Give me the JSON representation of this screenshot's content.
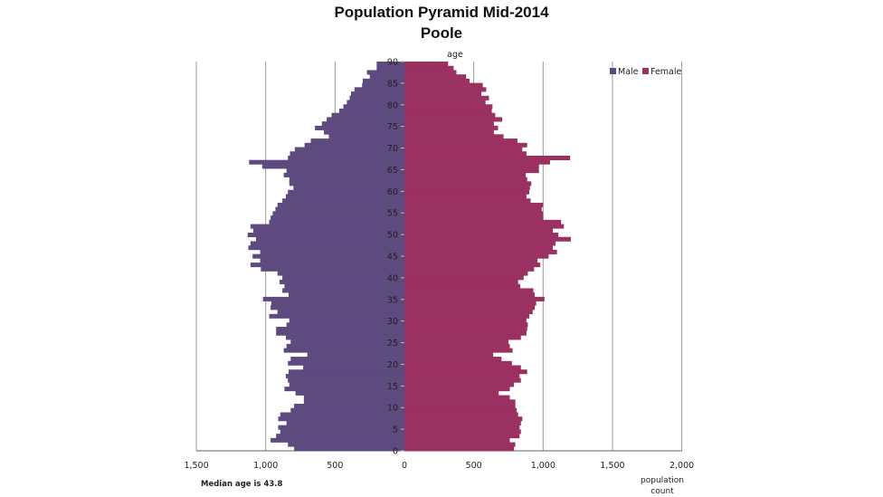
{
  "chart_data": {
    "type": "bar",
    "orientation": "horizontal-pyramid",
    "title": "Population Pyramid Mid-2014",
    "subtitle": "Poole",
    "ylabel": "age",
    "xlabel": "population count",
    "x_tick_labels_left": [
      "1,500",
      "1,000",
      "500"
    ],
    "x_tick_labels_right": [
      "0",
      "500",
      "1,000",
      "1,500",
      "2,000"
    ],
    "xlim_male": [
      0,
      1500
    ],
    "xlim_female": [
      0,
      2000
    ],
    "y_ticks": [
      0,
      5,
      10,
      15,
      20,
      25,
      30,
      35,
      40,
      45,
      50,
      55,
      60,
      65,
      70,
      75,
      80,
      85,
      90
    ],
    "grid": "vertical",
    "legend_position": "top-right",
    "ages": [
      0,
      1,
      2,
      3,
      4,
      5,
      6,
      7,
      8,
      9,
      10,
      11,
      12,
      13,
      14,
      15,
      16,
      17,
      18,
      19,
      20,
      21,
      22,
      23,
      24,
      25,
      26,
      27,
      28,
      29,
      30,
      31,
      32,
      33,
      34,
      35,
      36,
      37,
      38,
      39,
      40,
      41,
      42,
      43,
      44,
      45,
      46,
      47,
      48,
      49,
      50,
      51,
      52,
      53,
      54,
      55,
      56,
      57,
      58,
      59,
      60,
      61,
      62,
      63,
      64,
      65,
      66,
      67,
      68,
      69,
      70,
      71,
      72,
      73,
      74,
      75,
      76,
      77,
      78,
      79,
      80,
      81,
      82,
      83,
      84,
      85,
      86,
      87,
      88,
      89,
      90
    ],
    "series": [
      {
        "name": "Male",
        "color": "#5d4a7e",
        "values": [
          795,
          840,
          965,
          925,
          895,
          910,
          850,
          910,
          895,
          820,
          795,
          725,
          725,
          785,
          865,
          830,
          840,
          855,
          835,
          730,
          840,
          820,
          700,
          870,
          850,
          820,
          855,
          925,
          925,
          850,
          830,
          975,
          915,
          965,
          960,
          1020,
          835,
          880,
          865,
          900,
          880,
          915,
          1035,
          1110,
          1040,
          1095,
          1040,
          1125,
          1110,
          1070,
          1130,
          1090,
          1110,
          975,
          965,
          950,
          930,
          915,
          880,
          855,
          840,
          800,
          830,
          830,
          870,
          850,
          1025,
          1120,
          840,
          825,
          790,
          720,
          675,
          545,
          580,
          645,
          595,
          560,
          525,
          470,
          440,
          415,
          395,
          385,
          360,
          305,
          300,
          250,
          270,
          200,
          200
        ]
      },
      {
        "name": "Female",
        "color": "#9a3160",
        "values": [
          790,
          800,
          760,
          830,
          840,
          830,
          840,
          850,
          820,
          810,
          800,
          800,
          760,
          680,
          760,
          790,
          840,
          830,
          885,
          840,
          775,
          700,
          640,
          780,
          760,
          750,
          840,
          880,
          885,
          890,
          880,
          900,
          925,
          940,
          950,
          1010,
          940,
          930,
          835,
          820,
          860,
          890,
          935,
          980,
          960,
          1040,
          1100,
          1070,
          1090,
          1200,
          1110,
          1070,
          1150,
          1130,
          1000,
          1000,
          990,
          1000,
          910,
          880,
          900,
          905,
          915,
          885,
          875,
          970,
          970,
          1050,
          1195,
          880,
          850,
          885,
          815,
          715,
          645,
          675,
          645,
          705,
          655,
          630,
          635,
          585,
          610,
          555,
          590,
          565,
          470,
          445,
          375,
          355,
          315
        ]
      }
    ],
    "annotation": "Median age is 43.8"
  }
}
